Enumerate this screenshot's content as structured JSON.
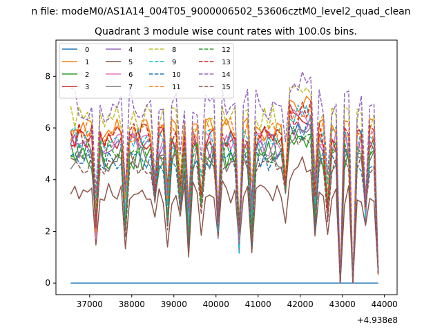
{
  "chart_data": {
    "type": "line",
    "suptitle": "n file: modeM0/AS1A14_004T05_9000006502_53606cztM0_level2_quad_clean",
    "title": "Quadrant 3 module wise count rates with 100.0s bins.",
    "xlabel": "",
    "ylabel": "",
    "offset_text": "+4.938e8",
    "xlim": [
      36200,
      44300
    ],
    "ylim": [
      -0.45,
      9.4
    ],
    "xticks": [
      37000,
      38000,
      39000,
      40000,
      41000,
      42000,
      43000,
      44000
    ],
    "xtick_labels": [
      "37000",
      "38000",
      "39000",
      "40000",
      "41000",
      "42000",
      "43000",
      "44000"
    ],
    "yticks": [
      0,
      2,
      4,
      6,
      8
    ],
    "ytick_labels": [
      "0",
      "2",
      "4",
      "6",
      "8"
    ],
    "x": {
      "start": 36550,
      "step": 100,
      "count": 74
    },
    "legend_position": "upper-left",
    "legend_columns": 4,
    "series": [
      {
        "name": "0",
        "color": "#1f77b4",
        "dash": "solid",
        "base": 0.0,
        "amp": 0.0,
        "seed": 0
      },
      {
        "name": "1",
        "color": "#ff7f0e",
        "dash": "solid",
        "base": 5.9,
        "amp": 0.5,
        "seed": 1
      },
      {
        "name": "2",
        "color": "#2ca02c",
        "dash": "solid",
        "base": 4.9,
        "amp": 0.6,
        "seed": 2
      },
      {
        "name": "3",
        "color": "#d62728",
        "dash": "solid",
        "base": 5.6,
        "amp": 0.5,
        "seed": 3
      },
      {
        "name": "4",
        "color": "#9467bd",
        "dash": "solid",
        "base": 5.3,
        "amp": 0.5,
        "seed": 4
      },
      {
        "name": "5",
        "color": "#8c564b",
        "dash": "solid",
        "base": 3.5,
        "amp": 0.5,
        "seed": 5
      },
      {
        "name": "6",
        "color": "#e377c2",
        "dash": "solid",
        "base": 5.4,
        "amp": 0.5,
        "seed": 6
      },
      {
        "name": "7",
        "color": "#7f7f7f",
        "dash": "solid",
        "base": 4.8,
        "amp": 0.5,
        "seed": 7
      },
      {
        "name": "8",
        "color": "#bcbd22",
        "dash": "dashed",
        "base": 6.4,
        "amp": 0.5,
        "seed": 8
      },
      {
        "name": "9",
        "color": "#17becf",
        "dash": "dashed",
        "base": 5.6,
        "amp": 0.5,
        "seed": 9
      },
      {
        "name": "10",
        "color": "#1f77b4",
        "dash": "dashed",
        "base": 4.8,
        "amp": 0.5,
        "seed": 10
      },
      {
        "name": "11",
        "color": "#ff7f0e",
        "dash": "dashed",
        "base": 5.9,
        "amp": 0.5,
        "seed": 11
      },
      {
        "name": "12",
        "color": "#2ca02c",
        "dash": "dashed",
        "base": 5.1,
        "amp": 0.5,
        "seed": 12
      },
      {
        "name": "13",
        "color": "#d62728",
        "dash": "dashed",
        "base": 5.7,
        "amp": 0.5,
        "seed": 13
      },
      {
        "name": "14",
        "color": "#9467bd",
        "dash": "dashed",
        "base": 6.9,
        "amp": 0.7,
        "seed": 14
      },
      {
        "name": "15",
        "color": "#8c564b",
        "dash": "dashed",
        "base": 4.6,
        "amp": 0.4,
        "seed": 15
      }
    ],
    "dips": [
      {
        "x": 37150,
        "depth": 0.55
      },
      {
        "x": 37850,
        "depth": 0.5
      },
      {
        "x": 38550,
        "depth": 0.35
      },
      {
        "x": 38850,
        "depth": 0.45
      },
      {
        "x": 39150,
        "depth": 0.35
      },
      {
        "x": 39350,
        "depth": 0.6
      },
      {
        "x": 39650,
        "depth": 0.4
      },
      {
        "x": 40050,
        "depth": 0.55
      },
      {
        "x": 40550,
        "depth": 0.65
      },
      {
        "x": 40850,
        "depth": 0.55
      },
      {
        "x": 41650,
        "depth": 0.3
      },
      {
        "x": 42350,
        "depth": 0.45
      },
      {
        "x": 42650,
        "depth": 0.45
      },
      {
        "x": 42950,
        "depth": 1.0
      },
      {
        "x": 43250,
        "depth": 1.0
      },
      {
        "x": 43550,
        "depth": 0.45
      },
      {
        "x": 43850,
        "depth": 0.8
      }
    ]
  }
}
